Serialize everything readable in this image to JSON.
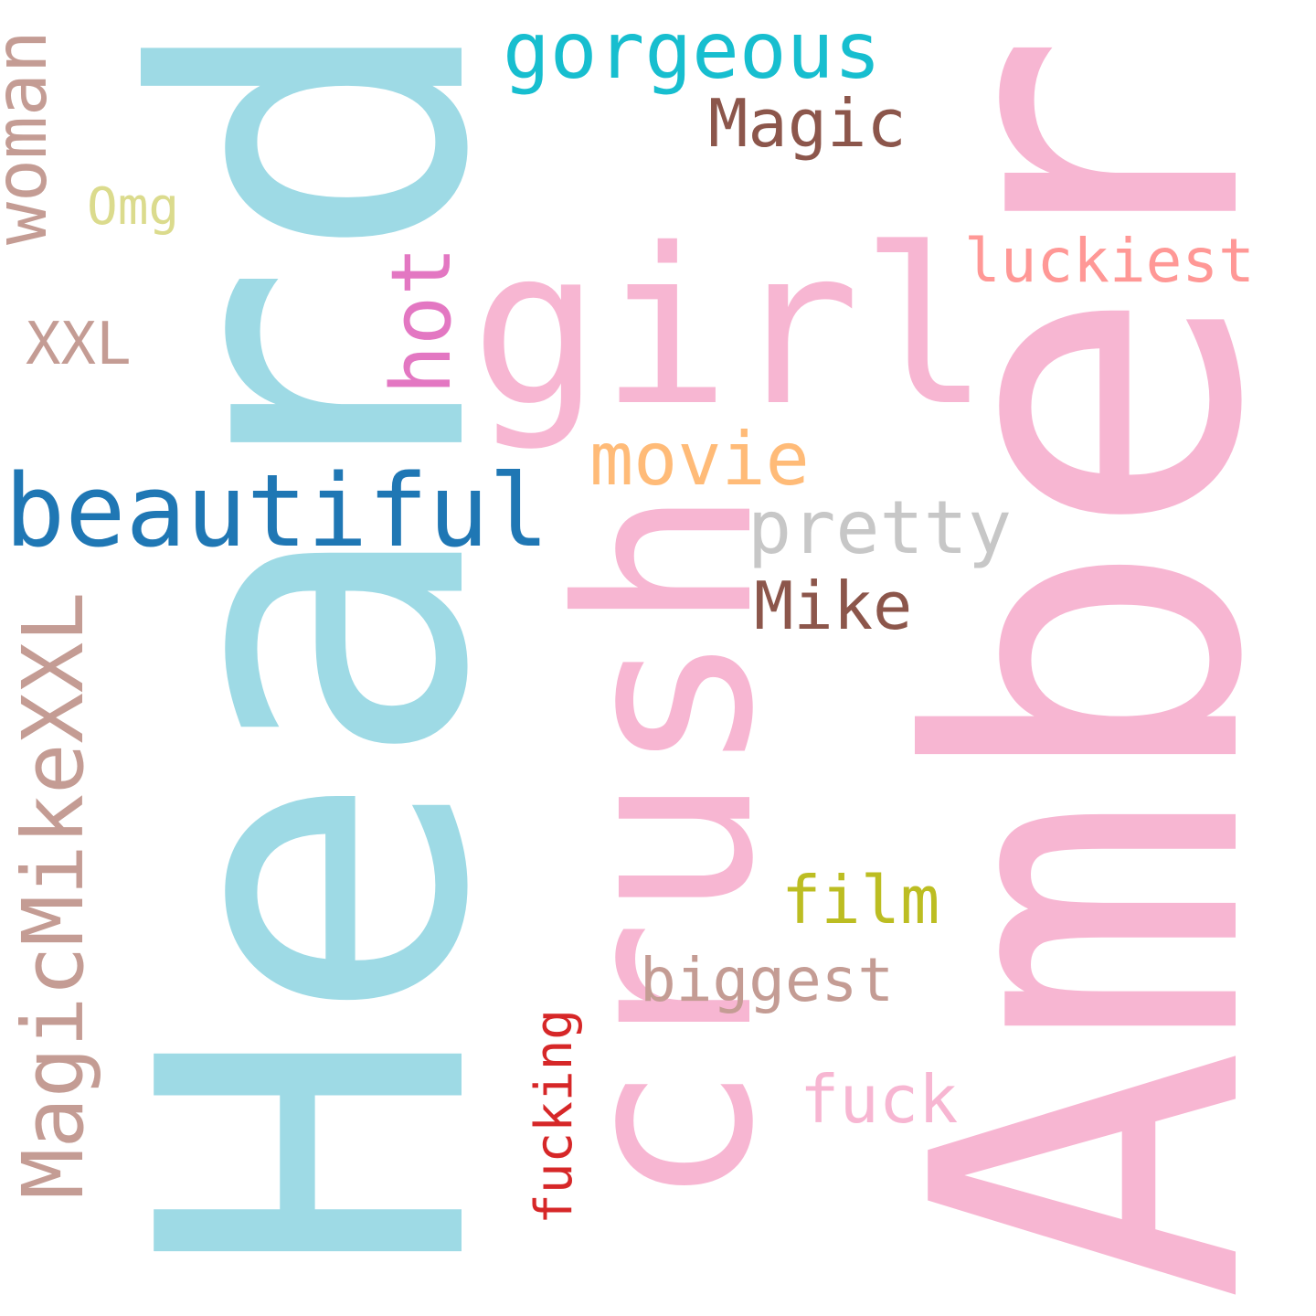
{
  "words": [
    "Heard",
    "Amber",
    "crush",
    "girl",
    "beautiful",
    "gorgeous",
    "Magic",
    "Omg",
    "woman",
    "XXL",
    "hot",
    "luckiest",
    "movie",
    "pretty",
    "Mike",
    "MagicMikeXXL",
    "film",
    "biggest",
    "fucking",
    "fuck"
  ]
}
